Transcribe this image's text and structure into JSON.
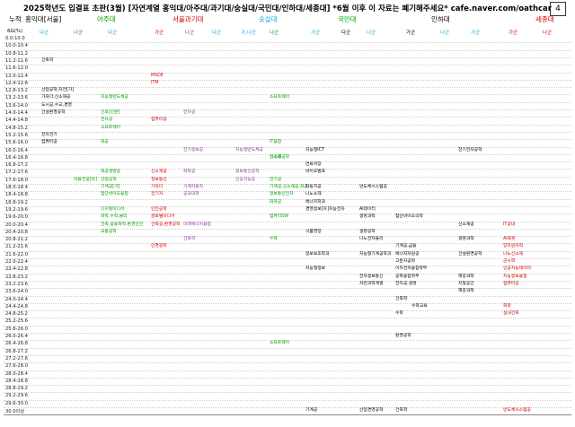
{
  "title": "2025학년도 입결표 초판(3월) [자연계열 홍익대/아주대/과기대/숭실대/국민대/인하대/세종대] *6월 이후 이 자료는 폐기해주세요* cafe.naver.com/oathcar",
  "page_number": "4",
  "header": {
    "cum": "누적",
    "universities": [
      "홍익대[서울]",
      "아주대",
      "서울과기대",
      "숭실대",
      "국민대",
      "인하대",
      "세종대"
    ]
  },
  "subheader": [
    "6G(%)",
    "다군",
    "나군",
    "다군",
    "가군",
    "나군",
    "다군",
    "가,나군",
    "나군",
    "가군",
    "다군",
    "나군",
    "가군",
    "나군",
    "가군",
    "가군",
    "나군"
  ],
  "rows": [
    "0.0-10.0",
    "10.0-10.4",
    "10.8-11.2",
    "11.2-11.6",
    "11.6-12.0",
    "12.0-12.4",
    "12.4-12.8",
    "12.8-13.2",
    "13.2-13.6",
    "13.6-14.0",
    "14.0-14.4",
    "14.4-14.8",
    "14.8-15.2",
    "15.2-15.6",
    "15.6-16.0",
    "16.0-16.4",
    "16.4-16.8",
    "16.8-17.2",
    "17.2-17.6",
    "17.6-18.0",
    "18.0-18.4",
    "18.4-18.8",
    "18.8-19.2",
    "19.2-19.6",
    "19.6-20.0",
    "20.0-20.4",
    "20.4-20.8",
    "20.8-21.2",
    "21.2-21.6",
    "21.6-22.0",
    "22.0-22.4",
    "22.4-22.8",
    "22.8-23.2",
    "23.2-23.6",
    "23.6-24.0",
    "24.0-24.4",
    "24.4-24.8",
    "24.8-25.2",
    "25.2-25.6",
    "25.6-26.0",
    "26.0-26.4",
    "26.4-26.8",
    "26.8-27.2",
    "27.2-27.6",
    "27.6-28.0",
    "28.0-28.4",
    "28.4-28.8",
    "28.8-29.2",
    "29.2-29.6",
    "29.6-30.0",
    "30.0이상"
  ],
  "colors": {
    "university": "#00a000",
    "seoul_tech": "#d40000",
    "ajou": "#2060c0",
    "green": "#009000",
    "purple": "#8e3aa0",
    "blue": "#1f5fbf",
    "red": "#cc0000"
  },
  "entries": [
    {
      "text": "건축학",
      "col": 0,
      "row": 3
    },
    {
      "text": "MSDE",
      "col": 3,
      "row": 5
    },
    {
      "text": "ITM",
      "col": 3,
      "row": 6
    },
    {
      "text": "산업공학,자전[가]",
      "col": 0,
      "row": 7
    },
    {
      "text": "지능형반도체공",
      "col": 2,
      "row": 8
    },
    {
      "text": "소프트웨어",
      "col": 6,
      "row": 8
    },
    {
      "text": "가자다,신소재공",
      "col": 0,
      "row": 8
    },
    {
      "text": "도시공,수교,경영",
      "col": 0,
      "row": 9
    },
    {
      "text": "건설환경공학",
      "col": 0,
      "row": 10
    },
    {
      "text": "간호[인문]",
      "col": 2,
      "row": 10
    },
    {
      "text": "전자공",
      "col": 4,
      "row": 10
    },
    {
      "text": "전자공",
      "col": 2,
      "row": 11
    },
    {
      "text": "컴퓨터공",
      "col": 3,
      "row": 11
    },
    {
      "text": "소프트웨어",
      "col": 2,
      "row": 12
    },
    {
      "text": "전자전기",
      "col": 0,
      "row": 13
    },
    {
      "text": "컴퓨터공",
      "col": 0,
      "row": 14
    },
    {
      "text": "화공",
      "col": 2,
      "row": 14
    },
    {
      "text": "IT융합",
      "col": 6,
      "row": 14
    },
    {
      "text": "전기정보공",
      "col": 4,
      "row": 15
    },
    {
      "text": "지능형반도체공",
      "col": 5,
      "row": 15
    },
    {
      "text": "지능형ICT",
      "col": 7,
      "row": 15
    },
    {
      "text": "전기전자공학",
      "col": 10,
      "row": 15
    },
    {
      "text": "전기공",
      "col": 6,
      "row": 16
    },
    {
      "text": "신소재공학",
      "col": 6,
      "row": 16
    },
    {
      "text": "연료저장",
      "col": 7,
      "row": 17
    },
    {
      "text": "화공생명공",
      "col": 2,
      "row": 18
    },
    {
      "text": "신소재공",
      "col": 3,
      "row": 18
    },
    {
      "text": "화학공",
      "col": 4,
      "row": 18
    },
    {
      "text": "정보통신공학",
      "col": 5,
      "row": 18
    },
    {
      "text": "바이오발효",
      "col": 7,
      "row": 18
    },
    {
      "text": "자율전공[자]",
      "col": 1,
      "row": 19
    },
    {
      "text": "산업공학",
      "col": 2,
      "row": 19
    },
    {
      "text": "정보통신",
      "col": 3,
      "row": 19
    },
    {
      "text": "인공지능공",
      "col": 5,
      "row": 19
    },
    {
      "text": "전기공",
      "col": 6,
      "row": 19
    },
    {
      "text": "기계공[가]",
      "col": 2,
      "row": 20
    },
    {
      "text": "가자다",
      "col": 3,
      "row": 20
    },
    {
      "text": "기계자동차",
      "col": 4,
      "row": 20
    },
    {
      "text": "기계공,신소재공,화공",
      "col": 6,
      "row": 20
    },
    {
      "text": "자동차공",
      "col": 7,
      "row": 20
    },
    {
      "text": "반도체시스템공",
      "col": 8,
      "row": 20
    },
    {
      "text": "첨단바이오융합",
      "col": 2,
      "row": 21
    },
    {
      "text": "전기자",
      "col": 3,
      "row": 21
    },
    {
      "text": "공과대학",
      "col": 4,
      "row": 21
    },
    {
      "text": "정보통신전자",
      "col": 6,
      "row": 21
    },
    {
      "text": "나노소재",
      "col": 7,
      "row": 21
    },
    {
      "text": "화학공",
      "col": 6,
      "row": 22
    },
    {
      "text": "에너지학과",
      "col": 7,
      "row": 22
    },
    {
      "text": "디지털미디어",
      "col": 2,
      "row": 23
    },
    {
      "text": "안전공학",
      "col": 3,
      "row": 23
    },
    {
      "text": "경영정보[자]",
      "col": 7,
      "row": 23
    },
    {
      "text": "지능전자",
      "col": 7,
      "row": 23,
      "dx": 26
    },
    {
      "text": "AI데이터",
      "col": 8,
      "row": 23
    },
    {
      "text": "화학,수학,물리",
      "col": 2,
      "row": 24
    },
    {
      "text": "글로벌미디어",
      "col": 3,
      "row": 24
    },
    {
      "text": "컴퓨터SW",
      "col": 6,
      "row": 24
    },
    {
      "text": "생명과학",
      "col": 8,
      "row": 24
    },
    {
      "text": "첨단바이오의학",
      "col": 9,
      "row": 24
    },
    {
      "text": "건축,응용화학,환경안전",
      "col": 2,
      "row": 25
    },
    {
      "text": "건축공,환경공학",
      "col": 3,
      "row": 25
    },
    {
      "text": "미래에너지융합",
      "col": 4,
      "row": 25
    },
    {
      "text": "신소재공",
      "col": 10,
      "row": 25
    },
    {
      "text": "IT공대",
      "col": 11,
      "row": 25
    },
    {
      "text": "교통공학",
      "col": 2,
      "row": 26
    },
    {
      "text": "식품영양",
      "col": 7,
      "row": 26
    },
    {
      "text": "생명공학",
      "col": 8,
      "row": 26
    },
    {
      "text": "건축학",
      "col": 4,
      "row": 27
    },
    {
      "text": "수학",
      "col": 6,
      "row": 27
    },
    {
      "text": "나노전자물리",
      "col": 8,
      "row": 27
    },
    {
      "text": "생명과학",
      "col": 10,
      "row": 27
    },
    {
      "text": "AI로봇",
      "col": 11,
      "row": 27
    },
    {
      "text": "안경광학",
      "col": 3,
      "row": 28
    },
    {
      "text": "기계공,금융",
      "col": 9,
      "row": 28
    },
    {
      "text": "양자원자력",
      "col": 11,
      "row": 28
    },
    {
      "text": "정보보호학과",
      "col": 7,
      "row": 29
    },
    {
      "text": "지능형기계공학과",
      "col": 8,
      "row": 29
    },
    {
      "text": "에너지자원공",
      "col": 9,
      "row": 29
    },
    {
      "text": "건설환경공학",
      "col": 10,
      "row": 29
    },
    {
      "text": "나노신소재",
      "col": 11,
      "row": 29
    },
    {
      "text": "고분자공학",
      "col": 9,
      "row": 30
    },
    {
      "text": "군사학",
      "col": 11,
      "row": 30
    },
    {
      "text": "지능형정보",
      "col": 7,
      "row": 31
    },
    {
      "text": "이차전지융합학부",
      "col": 9,
      "row": 31
    },
    {
      "text": "인공지능데이터",
      "col": 11,
      "row": 31
    },
    {
      "text": "전자정보통신",
      "col": 8,
      "row": 32
    },
    {
      "text": "공학융합학부",
      "col": 9,
      "row": 32
    },
    {
      "text": "해양과학",
      "col": 10,
      "row": 32
    },
    {
      "text": "지능정보융합",
      "col": 11,
      "row": 32
    },
    {
      "text": "자연과학계열",
      "col": 8,
      "row": 33
    },
    {
      "text": "전자공,생명",
      "col": 9,
      "row": 33
    },
    {
      "text": "지형공간",
      "col": 10,
      "row": 33
    },
    {
      "text": "컴퓨터공",
      "col": 11,
      "row": 33
    },
    {
      "text": "해양과학",
      "col": 10,
      "row": 34
    },
    {
      "text": "건축학",
      "col": 9,
      "row": 35
    },
    {
      "text": "수학교육",
      "col": 9,
      "row": 36,
      "dx": 18
    },
    {
      "text": "화학",
      "col": 11,
      "row": 36
    },
    {
      "text": "수학",
      "col": 9,
      "row": 37
    },
    {
      "text": "실내건축",
      "col": 11,
      "row": 37
    },
    {
      "text": "환경공학",
      "col": 9,
      "row": 40
    },
    {
      "text": "소프트웨어",
      "col": 6,
      "row": 41
    },
    {
      "text": "기계공",
      "col": 7,
      "row": 50
    },
    {
      "text": "산업경영공학",
      "col": 8,
      "row": 50
    },
    {
      "text": "건축학",
      "col": 9,
      "row": 50
    },
    {
      "text": "반도체시스템공",
      "col": 11,
      "row": 50
    }
  ]
}
